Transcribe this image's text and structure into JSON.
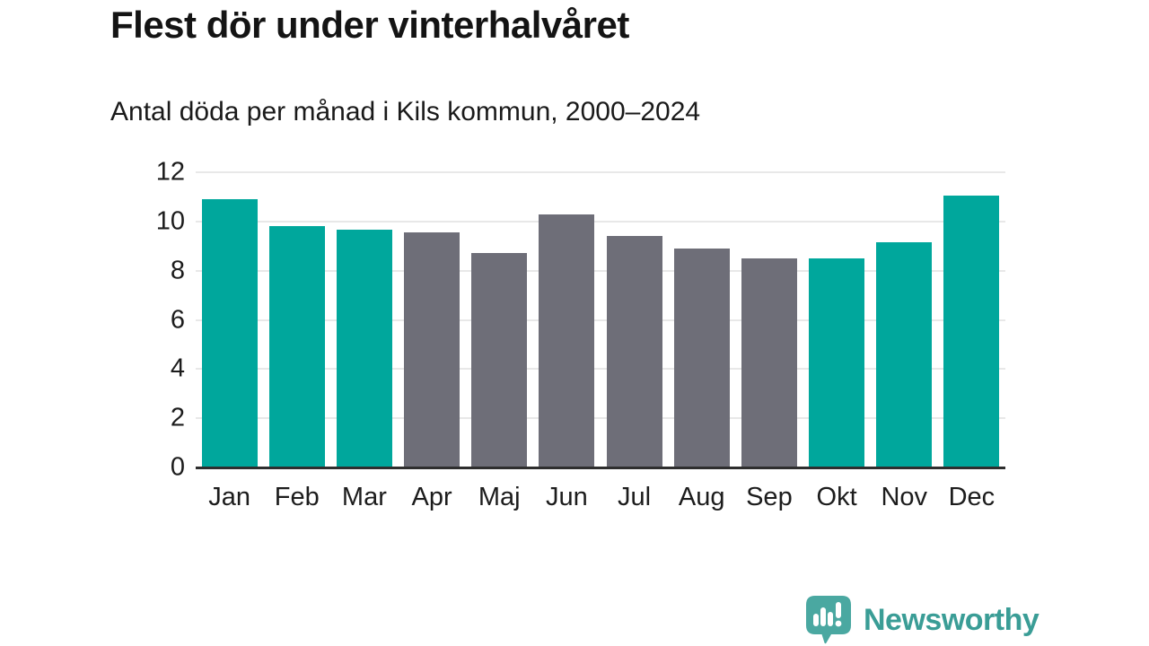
{
  "chart_data": {
    "type": "bar",
    "title": "Flest dör under vinterhalvåret",
    "subtitle": "Antal döda per månad i Kils kommun, 2000–2024",
    "categories": [
      "Jan",
      "Feb",
      "Mar",
      "Apr",
      "Maj",
      "Jun",
      "Jul",
      "Aug",
      "Sep",
      "Okt",
      "Nov",
      "Dec"
    ],
    "values": [
      10.9,
      9.8,
      9.65,
      9.55,
      8.7,
      10.3,
      9.4,
      8.9,
      8.5,
      8.5,
      9.15,
      11.05
    ],
    "bar_color_keys": [
      "highlight",
      "highlight",
      "highlight",
      "default",
      "default",
      "default",
      "default",
      "default",
      "default",
      "highlight",
      "highlight",
      "highlight"
    ],
    "colors": {
      "highlight": "#00a79c",
      "default": "#6e6e78"
    },
    "xlabel": "",
    "ylabel": "",
    "ylim": [
      0,
      12
    ],
    "yticks": [
      0,
      2,
      4,
      6,
      8,
      10,
      12
    ],
    "grid": true,
    "legend_position": "none"
  },
  "footer": {
    "brand": "Newsworthy",
    "icon": "newsworthy-speech-bubble-barchart-icon",
    "brand_color": "#3a9d96",
    "icon_color": "#4aa8a1"
  }
}
